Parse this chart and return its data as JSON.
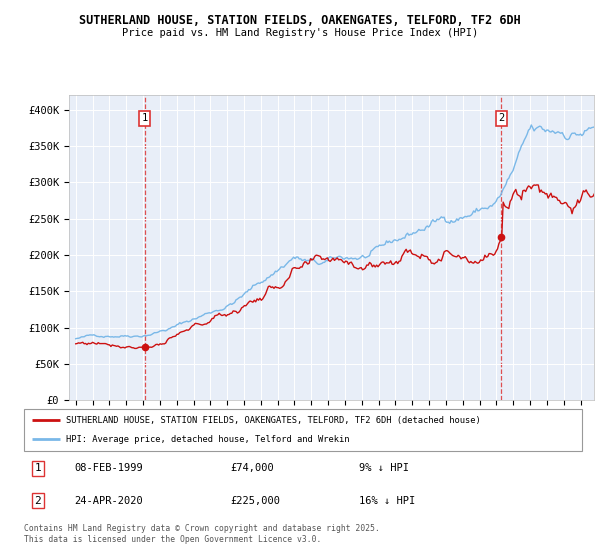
{
  "title_line1": "SUTHERLAND HOUSE, STATION FIELDS, OAKENGATES, TELFORD, TF2 6DH",
  "title_line2": "Price paid vs. HM Land Registry's House Price Index (HPI)",
  "background_color": "#e8eef8",
  "hpi_color": "#7ab8e8",
  "price_color": "#cc1111",
  "dashed_color": "#dd3333",
  "ylim": [
    0,
    420000
  ],
  "yticks": [
    0,
    50000,
    100000,
    150000,
    200000,
    250000,
    300000,
    350000,
    400000
  ],
  "ytick_labels": [
    "£0",
    "£50K",
    "£100K",
    "£150K",
    "£200K",
    "£250K",
    "£300K",
    "£350K",
    "£400K"
  ],
  "legend_entry1": "SUTHERLAND HOUSE, STATION FIELDS, OAKENGATES, TELFORD, TF2 6DH (detached house)",
  "legend_entry2": "HPI: Average price, detached house, Telford and Wrekin",
  "sale1_year": 1999.1,
  "sale1_val": 74000,
  "sale2_year": 2020.3,
  "sale2_val": 225000,
  "annotation1_date": "08-FEB-1999",
  "annotation1_price": "£74,000",
  "annotation1_pct": "9% ↓ HPI",
  "annotation2_date": "24-APR-2020",
  "annotation2_price": "£225,000",
  "annotation2_pct": "16% ↓ HPI",
  "footer_line1": "Contains HM Land Registry data © Crown copyright and database right 2025.",
  "footer_line2": "This data is licensed under the Open Government Licence v3.0."
}
